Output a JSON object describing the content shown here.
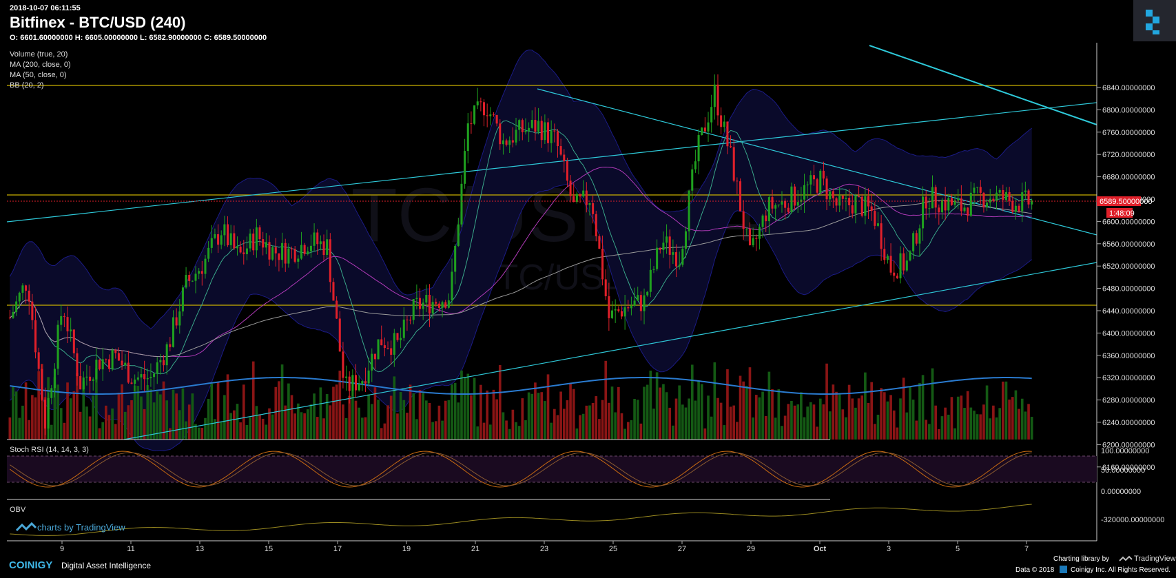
{
  "header": {
    "timestamp": "2018-10-07 06:11:55",
    "title": "Bitfinex - BTC/USD (240)",
    "ohlc": "O: 6601.60000000 H: 6605.00000000 L: 6582.90000000 C: 6589.50000000"
  },
  "watermark": {
    "main": "BTC/USD, 240",
    "sub": "BTC/USD"
  },
  "indicators": [
    "Volume (true, 20)",
    "MA (200, close, 0)",
    "MA (50, close, 0)",
    "BB (20, 2)"
  ],
  "price_axis": {
    "ticks": [
      "6840.00000000",
      "6800.00000000",
      "6760.00000000",
      "6720.00000000",
      "6680.00000000",
      "6640.00000000",
      "6600.00000000",
      "6560.00000000",
      "6520.00000000",
      "6480.00000000",
      "6440.00000000",
      "6400.00000000",
      "6360.00000000",
      "6320.00000000",
      "6280.00000000",
      "6240.00000000",
      "6200.00000000",
      "6160.00000000"
    ],
    "last_price": "6589.50000000",
    "countdown": "1:48:09"
  },
  "rsi_panel": {
    "label": "Stoch RSI (14, 14, 3, 3)",
    "ticks": [
      "100.00000000",
      "50.00000000",
      "0.00000000"
    ]
  },
  "obv_panel": {
    "label": "OBV",
    "ticks": [
      "-320000.00000000"
    ]
  },
  "time_axis": {
    "labels": [
      "9",
      "11",
      "13",
      "15",
      "17",
      "19",
      "21",
      "23",
      "25",
      "27",
      "29",
      "Oct",
      "3",
      "5",
      "7"
    ]
  },
  "branding": {
    "tradingview": "charts by TradingView",
    "coinigy": "COINIGY",
    "tagline": "Digital Asset Intelligence",
    "charting_by": "Charting library by",
    "tv_small": "TradingView",
    "copyright": "Data © 2018",
    "copyright2": "Coinigy Inc. All Rights Reserved."
  },
  "colors": {
    "up": "#1fa01f",
    "down": "#e0202a",
    "level": "#c9b000",
    "trend": "#2ec9d9",
    "ma50": "#b03ab8",
    "ma200": "#9a9a9a",
    "bb": "#1b1b86"
  },
  "chart_data": {
    "type": "candlestick",
    "title": "Bitfinex - BTC/USD (240)",
    "interval": "240",
    "x_range": [
      "2018-09-08",
      "2018-10-07"
    ],
    "ylim": [
      6150,
      6860
    ],
    "horizontal_levels": [
      6800,
      6600,
      6400
    ],
    "last_price": 6589.5,
    "ohlc_anchor": [
      {
        "date": "2018-09-08",
        "close": 6380
      },
      {
        "date": "2018-09-08.5",
        "close": 6450
      },
      {
        "date": "2018-09-09",
        "close": 6190
      },
      {
        "date": "2018-09-09.5",
        "close": 6405
      },
      {
        "date": "2018-09-10",
        "close": 6260
      },
      {
        "date": "2018-09-10.5",
        "close": 6300
      },
      {
        "date": "2018-09-11",
        "close": 6310
      },
      {
        "date": "2018-09-11.5",
        "close": 6270
      },
      {
        "date": "2018-09-12",
        "close": 6270
      },
      {
        "date": "2018-09-12.5",
        "close": 6330
      },
      {
        "date": "2018-09-13",
        "close": 6440
      },
      {
        "date": "2018-09-13.5",
        "close": 6480
      },
      {
        "date": "2018-09-14",
        "close": 6540
      },
      {
        "date": "2018-09-14.5",
        "close": 6490
      },
      {
        "date": "2018-09-15",
        "close": 6530
      },
      {
        "date": "2018-09-15.5",
        "close": 6500
      },
      {
        "date": "2018-09-16",
        "close": 6500
      },
      {
        "date": "2018-09-16.5",
        "close": 6520
      },
      {
        "date": "2018-09-17",
        "close": 6510
      },
      {
        "date": "2018-09-17.5",
        "close": 6250
      },
      {
        "date": "2018-09-18",
        "close": 6270
      },
      {
        "date": "2018-09-18.5",
        "close": 6340
      },
      {
        "date": "2018-09-19",
        "close": 6330
      },
      {
        "date": "2018-09-19.5",
        "close": 6400
      },
      {
        "date": "2018-09-20",
        "close": 6410
      },
      {
        "date": "2018-09-20.5",
        "close": 6420
      },
      {
        "date": "2018-09-21",
        "close": 6730
      },
      {
        "date": "2018-09-21.5",
        "close": 6770
      },
      {
        "date": "2018-09-22",
        "close": 6700
      },
      {
        "date": "2018-09-22.5",
        "close": 6720
      },
      {
        "date": "2018-09-23",
        "close": 6730
      },
      {
        "date": "2018-09-23.5",
        "close": 6700
      },
      {
        "date": "2018-09-24",
        "close": 6580
      },
      {
        "date": "2018-09-24.5",
        "close": 6600
      },
      {
        "date": "2018-09-25",
        "close": 6380
      },
      {
        "date": "2018-09-25.5",
        "close": 6400
      },
      {
        "date": "2018-09-26",
        "close": 6410
      },
      {
        "date": "2018-09-26.5",
        "close": 6520
      },
      {
        "date": "2018-09-27",
        "close": 6490
      },
      {
        "date": "2018-09-27.5",
        "close": 6680
      },
      {
        "date": "2018-09-28",
        "close": 6790
      },
      {
        "date": "2018-09-28.5",
        "close": 6660
      },
      {
        "date": "2018-09-29",
        "close": 6490
      },
      {
        "date": "2018-09-29.5",
        "close": 6580
      },
      {
        "date": "2018-09-30",
        "close": 6590
      },
      {
        "date": "2018-09-30.5",
        "close": 6610
      },
      {
        "date": "2018-10-01",
        "close": 6630
      },
      {
        "date": "2018-10-01.5",
        "close": 6580
      },
      {
        "date": "2018-10-02",
        "close": 6590
      },
      {
        "date": "2018-10-02.5",
        "close": 6570
      },
      {
        "date": "2018-10-03",
        "close": 6470
      },
      {
        "date": "2018-10-03.5",
        "close": 6480
      },
      {
        "date": "2018-10-04",
        "close": 6600
      },
      {
        "date": "2018-10-04.5",
        "close": 6590
      },
      {
        "date": "2018-10-05",
        "close": 6580
      },
      {
        "date": "2018-10-05.5",
        "close": 6600
      },
      {
        "date": "2018-10-06",
        "close": 6600
      },
      {
        "date": "2018-10-06.5",
        "close": 6590
      },
      {
        "date": "2018-10-07",
        "close": 6589.5
      }
    ]
  }
}
